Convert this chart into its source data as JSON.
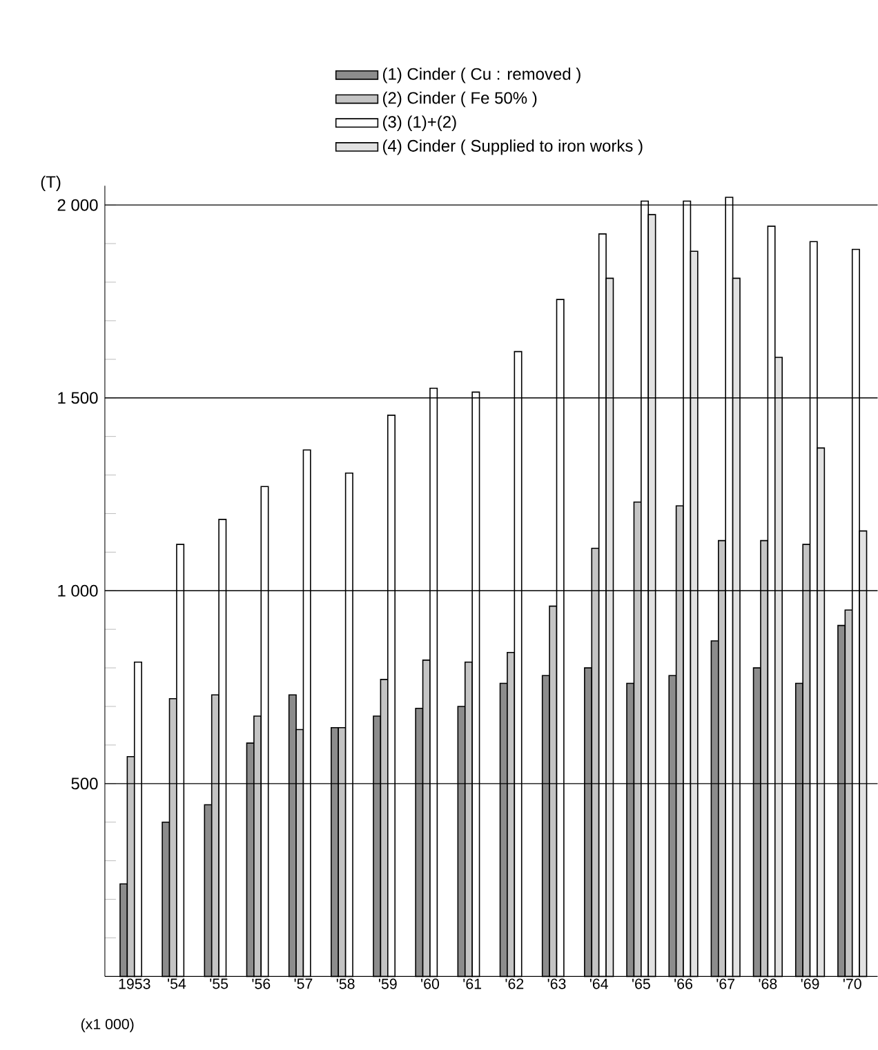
{
  "chart_data": {
    "type": "bar",
    "categories": [
      "1953",
      "'54",
      "'55",
      "'56",
      "'57",
      "'58",
      "'59",
      "'60",
      "'61",
      "'62",
      "'63",
      "'64",
      "'65",
      "'66",
      "'67",
      "'68",
      "'69",
      "'70"
    ],
    "ylabel": "(T)",
    "annotations": [
      "(x1 000)"
    ],
    "series": [
      {
        "name": "(1) Cinder ( Cu : removed )",
        "color": "#8c8c8c",
        "values": [
          240,
          400,
          445,
          605,
          730,
          645,
          675,
          695,
          700,
          760,
          780,
          800,
          760,
          780,
          870,
          800,
          760,
          910
        ]
      },
      {
        "name": "(2) Cinder ( Fe 50% )",
        "color": "#c4c4c4",
        "values": [
          570,
          720,
          730,
          675,
          640,
          645,
          770,
          820,
          815,
          840,
          960,
          1110,
          1230,
          1220,
          1130,
          1130,
          1120,
          950
        ]
      },
      {
        "name": "(3) (1)+(2)",
        "color": "#ffffff",
        "values": [
          815,
          1120,
          1185,
          1270,
          1365,
          1305,
          1455,
          1525,
          1515,
          1620,
          1755,
          1925,
          2010,
          2010,
          2020,
          1945,
          1905,
          1885
        ]
      },
      {
        "name": "(4) Cinder ( Supplied to iron works )",
        "color": "#e2e2e2",
        "values": [
          null,
          null,
          null,
          null,
          null,
          null,
          null,
          null,
          null,
          null,
          null,
          1810,
          1975,
          1880,
          1810,
          1605,
          1370,
          1155
        ]
      }
    ],
    "ylim": [
      0,
      2050
    ],
    "yticks": [
      {
        "value": 100,
        "label": null
      },
      {
        "value": 200,
        "label": null
      },
      {
        "value": 300,
        "label": null
      },
      {
        "value": 400,
        "label": null
      },
      500,
      {
        "value": 600,
        "label": null
      },
      {
        "value": 700,
        "label": null
      },
      {
        "value": 800,
        "label": null
      },
      {
        "value": 900,
        "label": null
      },
      {
        "value": 1000,
        "label": "1 000"
      },
      {
        "value": 1100,
        "label": null
      },
      {
        "value": 1200,
        "label": null
      },
      {
        "value": 1300,
        "label": null
      },
      {
        "value": 1400,
        "label": null
      },
      {
        "value": 1500,
        "label": "1 500"
      },
      {
        "value": 1600,
        "label": null
      },
      {
        "value": 1700,
        "label": null
      },
      {
        "value": 1800,
        "label": null
      },
      {
        "value": 1900,
        "label": null
      },
      {
        "value": 2000,
        "label": "2 000"
      }
    ],
    "grid": "y",
    "legend": "top"
  }
}
